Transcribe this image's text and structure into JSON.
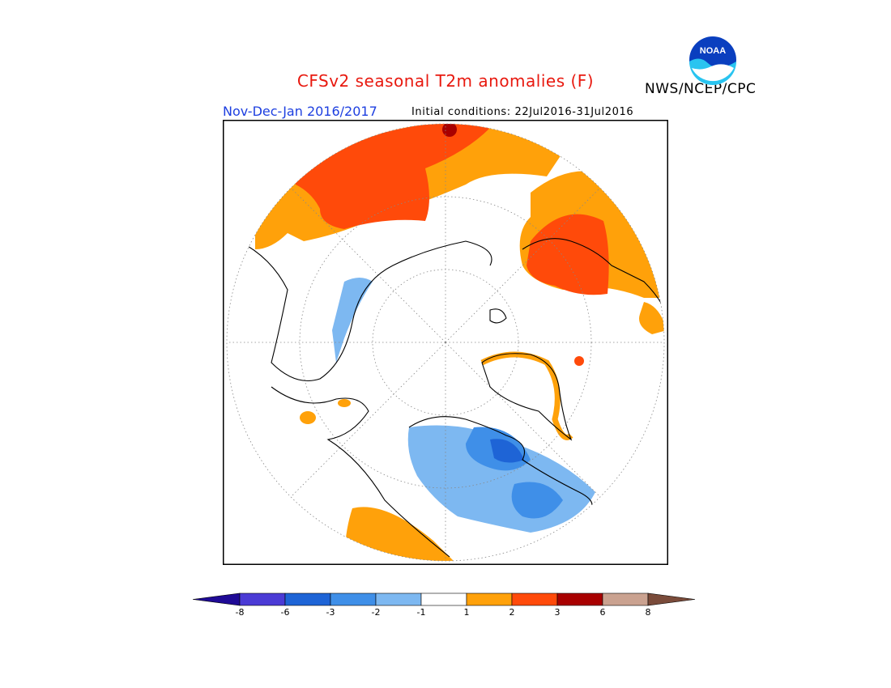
{
  "header": {
    "title": "CFSv2 seasonal T2m anomalies (F)",
    "period": "Nov-Dec-Jan 2016/2017",
    "initial_conditions": "Initial conditions: 22Jul2016-31Jul2016",
    "agency": "NWS/NCEP/CPC",
    "logo_text": "NOAA"
  },
  "map": {
    "projection": "north-polar-stereographic",
    "variable": "2m temperature anomaly",
    "units": "F"
  },
  "colorbar": {
    "ticks": [
      "-8",
      "-6",
      "-3",
      "-2",
      "-1",
      "1",
      "2",
      "3",
      "6",
      "8"
    ],
    "colors": [
      "#1f0a96",
      "#4b3bd5",
      "#1e64d6",
      "#3f8fe8",
      "#7db8f1",
      "#ffffff",
      "#ffa10a",
      "#ff4a0a",
      "#a80000",
      "#caa290",
      "#7a4b3a"
    ]
  }
}
